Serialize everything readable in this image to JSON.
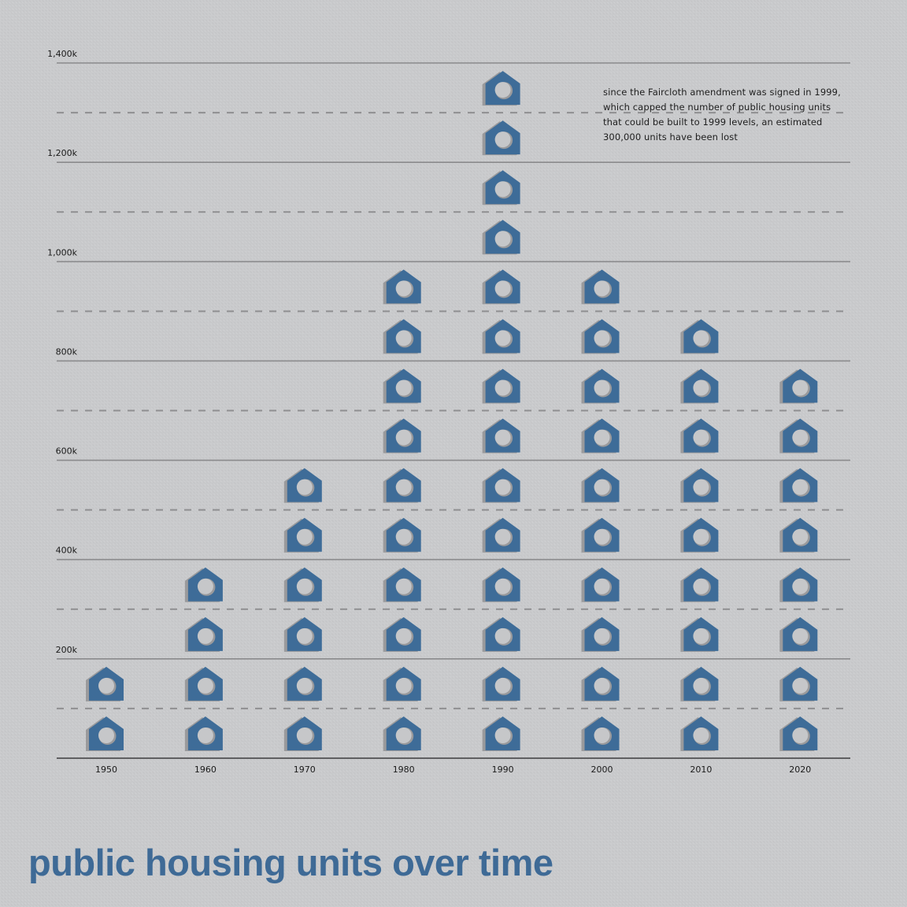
{
  "chart_data": {
    "type": "pictograph",
    "title": "public housing units over time",
    "xlabel": "",
    "ylabel": "",
    "unit_per_icon": 100000,
    "icon": "house-icon",
    "categories": [
      "1950",
      "1960",
      "1970",
      "1980",
      "1990",
      "2000",
      "2010",
      "2020"
    ],
    "values": [
      200000,
      400000,
      600000,
      1000000,
      1400000,
      1000000,
      900000,
      800000
    ],
    "ylim": [
      0,
      1400000
    ],
    "y_ticks": [
      {
        "value": 200000,
        "label": "200k"
      },
      {
        "value": 400000,
        "label": "400k"
      },
      {
        "value": 600000,
        "label": "600k"
      },
      {
        "value": 800000,
        "label": "800k"
      },
      {
        "value": 1000000,
        "label": "1,000k"
      },
      {
        "value": 1200000,
        "label": "1,200k"
      },
      {
        "value": 1400000,
        "label": "1,400k"
      }
    ],
    "minor_gridlines": [
      100000,
      300000,
      500000,
      700000,
      900000,
      1100000,
      1300000
    ],
    "grid": true,
    "annotation": {
      "lines": [
        "since the Faircloth amendment was signed in 1999,",
        "which capped the number of public housing units",
        "that could be built to 1999 levels, an estimated",
        "300,000 units have been lost"
      ]
    },
    "colors": {
      "icon": "#3e6c98",
      "icon_shadow": "#9a9a9c",
      "hole": "#c6c7c9",
      "major_grid": "#8a8a8c",
      "minor_grid": "#8f8f91",
      "axis": "#5f5f61",
      "title": "#3e6a96"
    }
  }
}
